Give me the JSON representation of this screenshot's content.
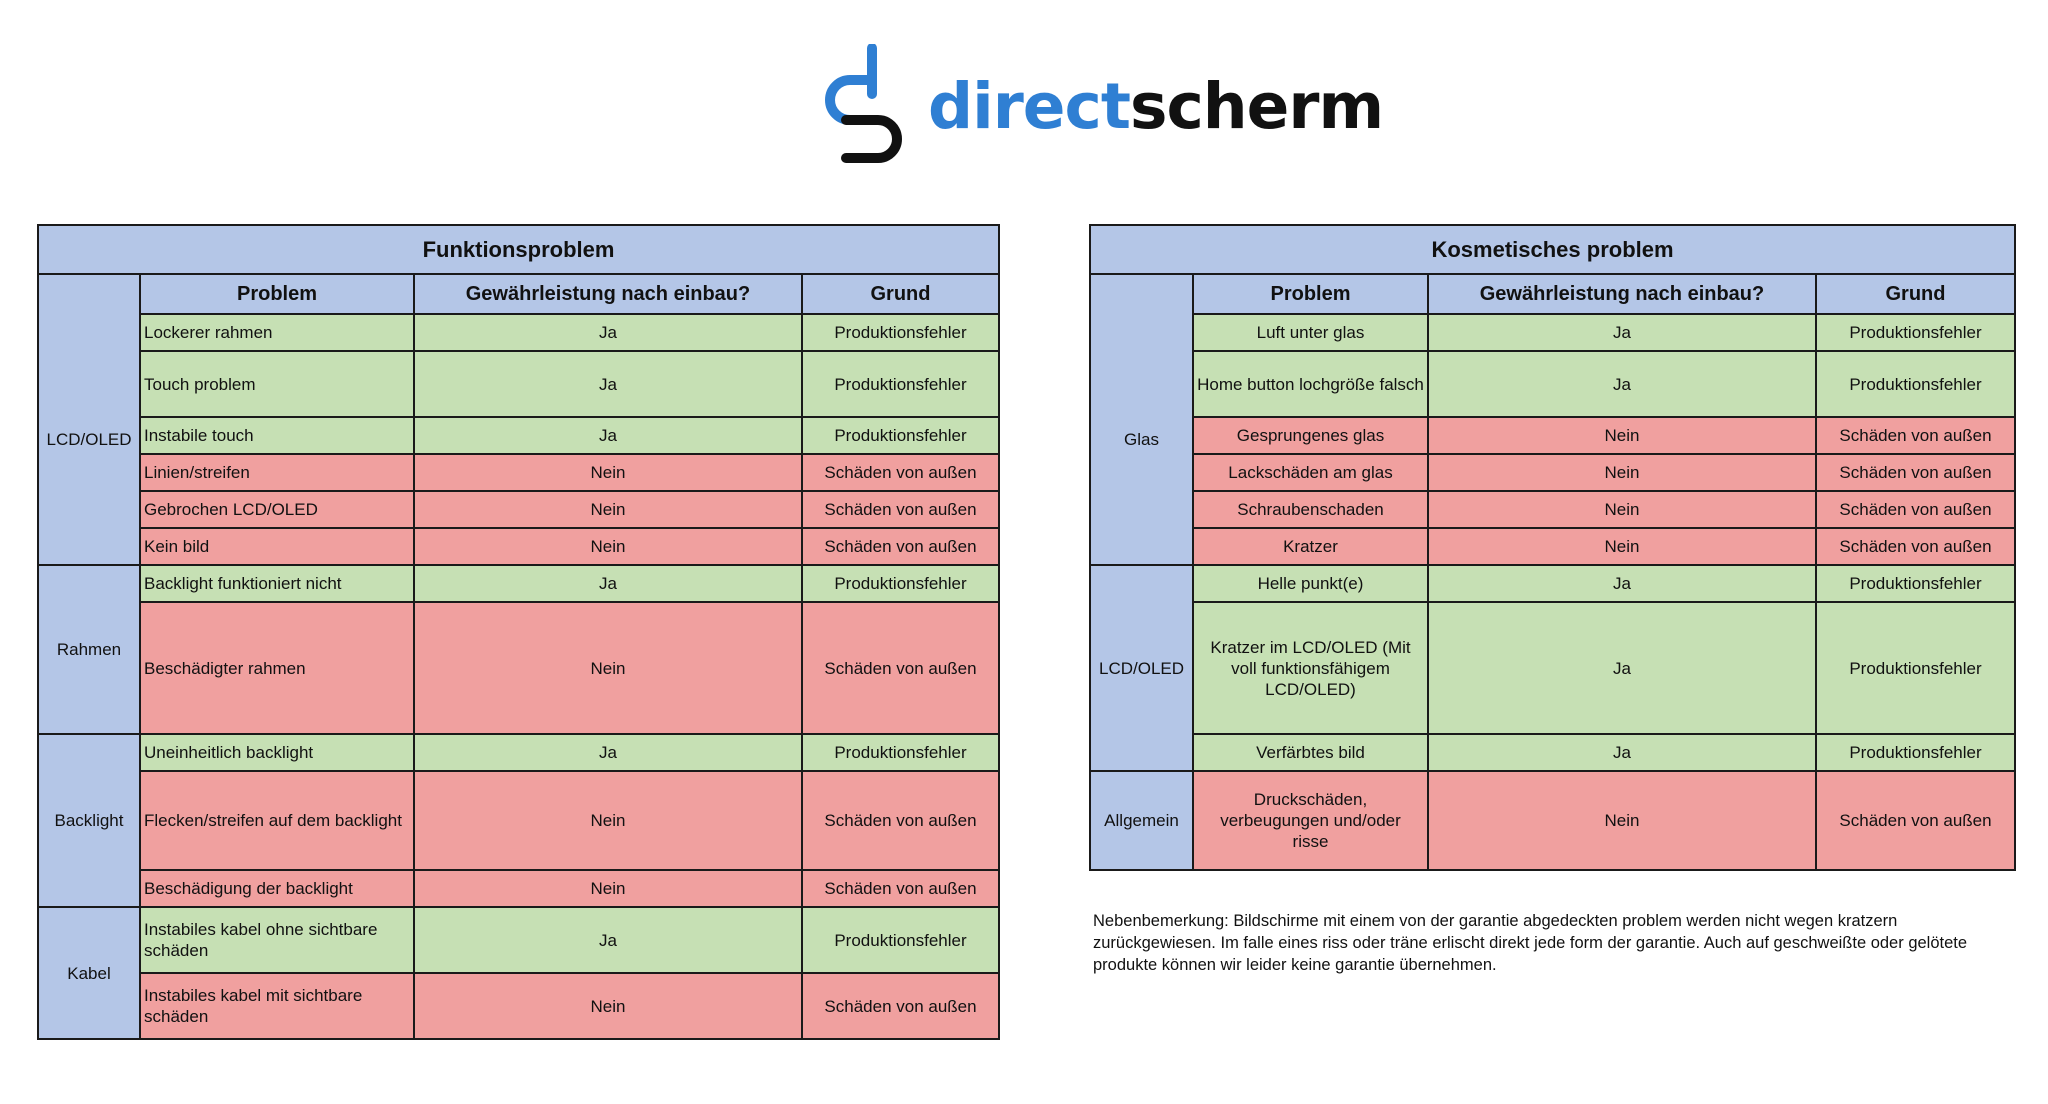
{
  "brand": {
    "part1": "direct",
    "part2": "scherm",
    "primary_color": "#2f7fd3",
    "secondary_color": "#111111"
  },
  "colors": {
    "header": "#b4c6e7",
    "yes": "#c6e0b4",
    "no": "#f0a09f"
  },
  "headers": {
    "problem": "Problem",
    "warranty": "Gewährleistung nach einbau?",
    "reason": "Grund"
  },
  "t1": {
    "title": "Funktionsproblem",
    "groups": [
      {
        "name": "LCD/OLED",
        "rows": [
          {
            "problem": "Lockerer rahmen",
            "warranty": "Ja",
            "reason": "Produktionsfehler"
          },
          {
            "problem": "Touch problem",
            "warranty": "Ja",
            "reason": "Produktionsfehler"
          },
          {
            "problem": "Instabile touch",
            "warranty": "Ja",
            "reason": "Produktionsfehler"
          },
          {
            "problem": "Linien/streifen",
            "warranty": "Nein",
            "reason": "Schäden von außen"
          },
          {
            "problem": "Gebrochen LCD/OLED",
            "warranty": "Nein",
            "reason": "Schäden von außen"
          },
          {
            "problem": "Kein bild",
            "warranty": "Nein",
            "reason": "Schäden von außen"
          }
        ]
      },
      {
        "name": "Rahmen",
        "rows": [
          {
            "problem": "Backlight funktioniert nicht",
            "warranty": "Ja",
            "reason": "Produktionsfehler"
          },
          {
            "problem": "Beschädigter rahmen",
            "warranty": "Nein",
            "reason": "Schäden von außen"
          }
        ]
      },
      {
        "name": "Backlight",
        "rows": [
          {
            "problem": "Uneinheitlich backlight",
            "warranty": "Ja",
            "reason": "Produktionsfehler"
          },
          {
            "problem": "Flecken/streifen auf dem backlight",
            "warranty": "Nein",
            "reason": "Schäden von außen"
          },
          {
            "problem": "Beschädigung der backlight",
            "warranty": "Nein",
            "reason": "Schäden von außen"
          }
        ]
      },
      {
        "name": "Kabel",
        "rows": [
          {
            "problem": "Instabiles kabel ohne sichtbare schäden",
            "warranty": "Ja",
            "reason": "Produktionsfehler"
          },
          {
            "problem": "Instabiles kabel mit sichtbare schäden",
            "warranty": "Nein",
            "reason": "Schäden von außen"
          }
        ]
      }
    ]
  },
  "t2": {
    "title": "Kosmetisches problem",
    "groups": [
      {
        "name": "Glas",
        "rows": [
          {
            "problem": "Luft unter glas",
            "warranty": "Ja",
            "reason": "Produktionsfehler"
          },
          {
            "problem": "Home button lochgröße falsch",
            "warranty": "Ja",
            "reason": "Produktionsfehler"
          },
          {
            "problem": "Gesprungenes glas",
            "warranty": "Nein",
            "reason": "Schäden von außen"
          },
          {
            "problem": "Lackschäden am glas",
            "warranty": "Nein",
            "reason": "Schäden von außen"
          },
          {
            "problem": "Schraubenschaden",
            "warranty": "Nein",
            "reason": "Schäden von außen"
          },
          {
            "problem": "Kratzer",
            "warranty": "Nein",
            "reason": "Schäden von außen"
          }
        ]
      },
      {
        "name": "LCD/OLED",
        "rows": [
          {
            "problem": "Helle punkt(e)",
            "warranty": "Ja",
            "reason": "Produktionsfehler"
          },
          {
            "problem": "Kratzer im LCD/OLED (Mit voll funktionsfähigem LCD/OLED)",
            "warranty": "Ja",
            "reason": "Produktionsfehler"
          },
          {
            "problem": "Verfärbtes bild",
            "warranty": "Ja",
            "reason": "Produktionsfehler"
          }
        ]
      },
      {
        "name": "Allgemein",
        "rows": [
          {
            "problem": "Druckschäden, verbeugungen und/oder risse",
            "warranty": "Nein",
            "reason": "Schäden von außen"
          }
        ]
      }
    ]
  },
  "note": "Nebenbemerkung: Bildschirme mit einem von der garantie abgedeckten problem werden nicht wegen kratzern zurückgewiesen. Im falle eines riss oder träne erlischt direkt jede form der garantie. Auch auf geschweißte oder gelötete produkte können wir leider keine garantie übernehmen."
}
